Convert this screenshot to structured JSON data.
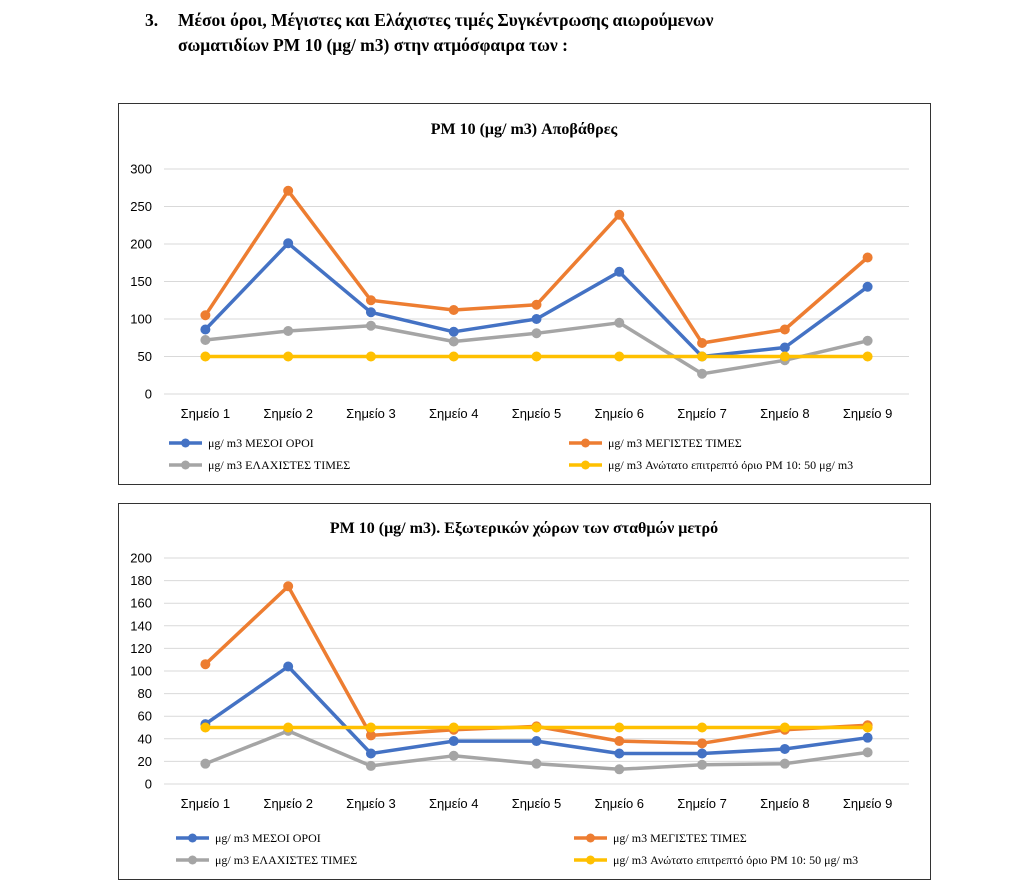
{
  "heading": {
    "number": "3.",
    "line1": "Μέσοι όροι,  Μέγιστες και  Ελάχιστες τιμές Συγκέντρωσης αιωρούμενων",
    "line2": "σωματιδίων  PM 10  (μg/ m3) στην ατμόσφαιρα των :"
  },
  "colors": {
    "blue": "#4472C4",
    "orange": "#ED7D31",
    "gray": "#A5A5A5",
    "yellow": "#FFC000",
    "grid": "#D9D9D9"
  },
  "chart_data": [
    {
      "type": "line",
      "title": "PM 10 (μg/ m3) Αποβάθρες",
      "categories": [
        "Σημείο 1",
        "Σημείο 2",
        "Σημείο 3",
        "Σημείο 4",
        "Σημείο 5",
        "Σημείο 6",
        "Σημείο 7",
        "Σημείο 8",
        "Σημείο 9"
      ],
      "ylim": [
        0,
        300
      ],
      "yticks": [
        0,
        50,
        100,
        150,
        200,
        250,
        300
      ],
      "grid": true,
      "legend_position": "bottom",
      "series": [
        {
          "name": "μg/ m3 ΜΕΣΟΙ ΟΡΟΙ",
          "color": "#4472C4",
          "values": [
            86,
            201,
            109,
            83,
            100,
            163,
            50,
            62,
            143
          ]
        },
        {
          "name": "μg/ m3 ΜΕΓΙΣΤΕΣ ΤΙΜΕΣ",
          "color": "#ED7D31",
          "values": [
            105,
            271,
            125,
            112,
            119,
            239,
            68,
            86,
            182
          ]
        },
        {
          "name": "μg/ m3 ΕΛΑΧΙΣΤΕΣ ΤΙΜΕΣ",
          "color": "#A5A5A5",
          "values": [
            72,
            84,
            91,
            70,
            81,
            95,
            27,
            45,
            71
          ]
        },
        {
          "name": "μg/ m3 Ανώτατο επιτρεπτό όριο PM 10: 50 μg/ m3",
          "color": "#FFC000",
          "values": [
            50,
            50,
            50,
            50,
            50,
            50,
            50,
            50,
            50
          ]
        }
      ]
    },
    {
      "type": "line",
      "title": "PM 10 (μg/ m3).  Εξωτερικών χώρων των σταθμών μετρό",
      "categories": [
        "Σημείο 1",
        "Σημείο 2",
        "Σημείο 3",
        "Σημείο 4",
        "Σημείο 5",
        "Σημείο 6",
        "Σημείο 7",
        "Σημείο 8",
        "Σημείο 9"
      ],
      "ylim": [
        0,
        200
      ],
      "yticks": [
        0,
        20,
        40,
        60,
        80,
        100,
        120,
        140,
        160,
        180,
        200
      ],
      "grid": true,
      "legend_position": "bottom",
      "series": [
        {
          "name": "μg/ m3 ΜΕΣΟΙ ΟΡΟΙ",
          "color": "#4472C4",
          "values": [
            53,
            104,
            27,
            38,
            38,
            27,
            27,
            31,
            41
          ]
        },
        {
          "name": "μg/ m3 ΜΕΓΙΣΤΕΣ ΤΙΜΕΣ",
          "color": "#ED7D31",
          "values": [
            106,
            175,
            43,
            48,
            51,
            38,
            36,
            48,
            52
          ]
        },
        {
          "name": "μg/ m3 ΕΛΑΧΙΣΤΕΣ ΤΙΜΕΣ",
          "color": "#A5A5A5",
          "values": [
            18,
            47,
            16,
            25,
            18,
            13,
            17,
            18,
            28
          ]
        },
        {
          "name": "μg/ m3 Ανώτατο επιτρεπτό όριο PM 10: 50 μg/ m3",
          "color": "#FFC000",
          "values": [
            50,
            50,
            50,
            50,
            50,
            50,
            50,
            50,
            50
          ]
        }
      ]
    }
  ]
}
